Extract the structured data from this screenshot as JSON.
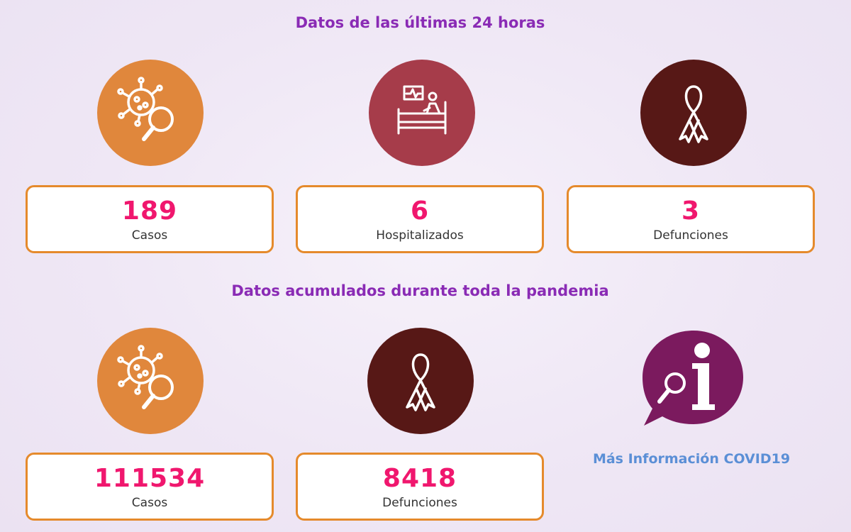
{
  "colors": {
    "title": "#8a2bb5",
    "cases_icon_bg": "#e0873c",
    "hospital_icon_bg": "#a63c4a",
    "deaths_icon_bg": "#571816",
    "info_icon_bg": "#7b1a5e",
    "card_border": "#e58a2c",
    "stat_value": "#f0176e",
    "link": "#5b8fd6"
  },
  "last_24h": {
    "title": "Datos de las últimas 24 horas",
    "stats": [
      {
        "icon": "virus-search-icon",
        "value": "189",
        "label": "Casos"
      },
      {
        "icon": "hospital-bed-icon",
        "value": "6",
        "label": "Hospitalizados"
      },
      {
        "icon": "ribbon-icon",
        "value": "3",
        "label": "Defunciones"
      }
    ]
  },
  "cumulative": {
    "title": "Datos acumulados durante toda la pandemia",
    "stats": [
      {
        "icon": "virus-search-icon",
        "value": "111534",
        "label": "Casos"
      },
      {
        "icon": "ribbon-icon",
        "value": "8418",
        "label": "Defunciones"
      }
    ]
  },
  "info": {
    "icon": "info-bubble-icon",
    "link_label": "Más Información COVID19"
  }
}
